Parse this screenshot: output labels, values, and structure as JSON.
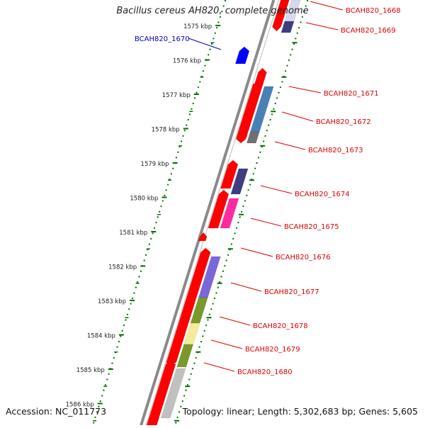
{
  "title": "Bacillus cereus AH820, complete genome",
  "footer": {
    "accession": "Accession: NC_011773",
    "summary": "Topology: linear; Length: 5,302,683 bp; Genes: 5,605"
  },
  "scale_labels": [
    "1575 kbp",
    "1576 kbp",
    "1577 kbp",
    "1578 kbp",
    "1579 kbp",
    "1580 kbp",
    "1581 kbp",
    "1582 kbp",
    "1583 kbp",
    "1584 kbp",
    "1585 kbp",
    "1586 kbp"
  ],
  "genes": [
    {
      "label": "BCAH820_1668",
      "color": "#e00000"
    },
    {
      "label": "BCAH820_1669",
      "color": "#e00000"
    },
    {
      "label": "BCAH820_1670",
      "color": "#0000cc"
    },
    {
      "label": "BCAH820_1671",
      "color": "#e00000"
    },
    {
      "label": "BCAH820_1672",
      "color": "#e00000"
    },
    {
      "label": "BCAH820_1673",
      "color": "#e00000"
    },
    {
      "label": "BCAH820_1674",
      "color": "#e00000"
    },
    {
      "label": "BCAH820_1675",
      "color": "#e00000"
    },
    {
      "label": "BCAH820_1676",
      "color": "#e00000"
    },
    {
      "label": "BCAH820_1677",
      "color": "#e00000"
    },
    {
      "label": "BCAH820_1678",
      "color": "#e00000"
    },
    {
      "label": "BCAH820_1679",
      "color": "#e00000"
    },
    {
      "label": "BCAH820_1680",
      "color": "#e00000"
    }
  ],
  "colors": {
    "cds": "#ff0000",
    "cds_reverse": "#0000ff",
    "steel_blue": "#4a80b8",
    "dark_slate_blue": "#3d3d80",
    "lavender": "#d8d8ee",
    "deep_pink": "#ff2aa0",
    "medium_slate_blue": "#7a68d8",
    "olive": "#789a2a",
    "pale_yellow": "#f4ec98",
    "gray": "#c0c0c0",
    "dim_gray": "#707070",
    "ticks": "#007000",
    "backbone": "#8a8a8a"
  }
}
